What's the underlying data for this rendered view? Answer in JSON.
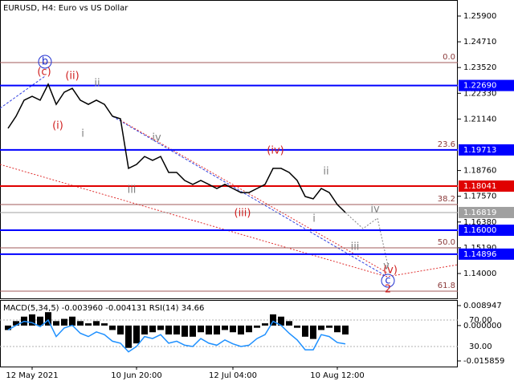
{
  "chart_data": [
    {
      "type": "line",
      "title": "EURUSD, H4:  Euro vs US Dollar",
      "color": "#000000",
      "categories": [
        null,
        null,
        null,
        "12 May 2021",
        null,
        null,
        null,
        null,
        null,
        null,
        null,
        null,
        null,
        null,
        null,
        null,
        "10 Jun 20:00",
        null,
        null,
        null,
        null,
        null,
        null,
        null,
        null,
        null,
        null,
        null,
        "12 Jul 04:00",
        null,
        null,
        null,
        null,
        null,
        null,
        null,
        null,
        null,
        null,
        null,
        null,
        "10 Aug 12:00",
        null
      ],
      "values": [
        1.2071,
        1.2127,
        1.2201,
        1.2219,
        1.2201,
        1.2275,
        1.2182,
        1.2238,
        1.2256,
        1.2201,
        1.2182,
        1.2201,
        1.2182,
        1.2127,
        1.2115,
        1.1886,
        1.1904,
        1.1941,
        1.1923,
        1.1941,
        1.1867,
        1.1867,
        1.183,
        1.1812,
        1.183,
        1.1812,
        1.1793,
        1.1812,
        1.1793,
        1.1774,
        1.1774,
        1.1793,
        1.1812,
        1.1886,
        1.1886,
        1.1867,
        1.183,
        1.1756,
        1.1745,
        1.1793,
        1.1774,
        1.1719,
        1.1682
      ],
      "ylim": [
        1.12851,
        1.26641
      ],
      "yticks": [
        {
          "value": 1.259,
          "label": "1.25900"
        },
        {
          "value": 1.2471,
          "label": "1.24710"
        },
        {
          "value": 1.2352,
          "label": "1.23520"
        },
        {
          "value": 1.2233,
          "label": "1.22330"
        },
        {
          "value": 1.2114,
          "label": "1.21140"
        },
        {
          "value": 1.1876,
          "label": "1.18760"
        },
        {
          "value": 1.1757,
          "label": "1.17570"
        },
        {
          "value": 1.1638,
          "label": "1.16380"
        },
        {
          "value": 1.1519,
          "label": "1.15190"
        },
        {
          "value": 1.14,
          "label": "1.14000"
        }
      ],
      "levels": [
        {
          "value": 1.2269,
          "label": "1.22690",
          "color": "#0000ff"
        },
        {
          "value": 1.19713,
          "label": "1.19713",
          "color": "#0000ff"
        },
        {
          "value": 1.18041,
          "label": "1.18041",
          "color": "#e00000"
        },
        {
          "value": 1.16819,
          "label": "1.16819",
          "color": "#a0a0a0"
        },
        {
          "value": 1.16,
          "label": "1.16000",
          "color": "#0000ff"
        },
        {
          "value": 1.14896,
          "label": "1.14896",
          "color": "#0000ff"
        }
      ],
      "fib_labels": [
        "0.0",
        "23.6",
        "38.2",
        "50.0",
        "61.8"
      ],
      "wave_labels": [
        "b",
        "(c)",
        "(ii)",
        "ii",
        "(i)",
        "i",
        "iv",
        "iii",
        "(iv)",
        "(iii)",
        "ii",
        "i",
        "iv",
        "iii",
        "v",
        "(v)",
        "c",
        "2"
      ]
    },
    {
      "type": "bar",
      "title": "MACD(5,34,5) -0.003960 -0.004131 RSI(14) 34.66",
      "series": [
        {
          "color": "#000000",
          "values": [
            -0.002,
            0.002,
            0.004,
            0.005,
            0.004,
            0.006,
            0.002,
            0.003,
            0.004,
            0.002,
            0.001,
            0.002,
            0.001,
            -0.002,
            -0.004,
            -0.01,
            -0.008,
            -0.004,
            -0.003,
            -0.002,
            -0.004,
            -0.004,
            -0.005,
            -0.005,
            -0.003,
            -0.004,
            -0.004,
            -0.002,
            -0.003,
            -0.004,
            -0.003,
            -0.001,
            0.001,
            0.005,
            0.004,
            0.002,
            -0.001,
            -0.005,
            -0.006,
            -0.002,
            -0.001,
            -0.003,
            -0.004
          ]
        },
        {
          "color": "#1e90ff",
          "axis": "y2",
          "values": [
            55,
            62,
            68,
            66,
            60,
            70,
            45,
            58,
            62,
            50,
            45,
            52,
            48,
            38,
            35,
            22,
            30,
            45,
            42,
            48,
            35,
            38,
            32,
            30,
            42,
            35,
            32,
            40,
            34,
            30,
            32,
            42,
            48,
            68,
            62,
            50,
            40,
            25,
            25,
            48,
            45,
            36,
            34
          ]
        }
      ],
      "ylim": [
        -0.018376,
        0.011464
      ],
      "yticks": [
        0.008947,
        {
          "value": 0,
          "label": "0.000000"
        },
        -0.015859
      ],
      "y2lim": [
        -0.3,
        100.3
      ],
      "y2ticks": [
        {
          "value": 70,
          "label": "70.00"
        },
        {
          "value": 30,
          "label": "30.00"
        }
      ]
    }
  ]
}
